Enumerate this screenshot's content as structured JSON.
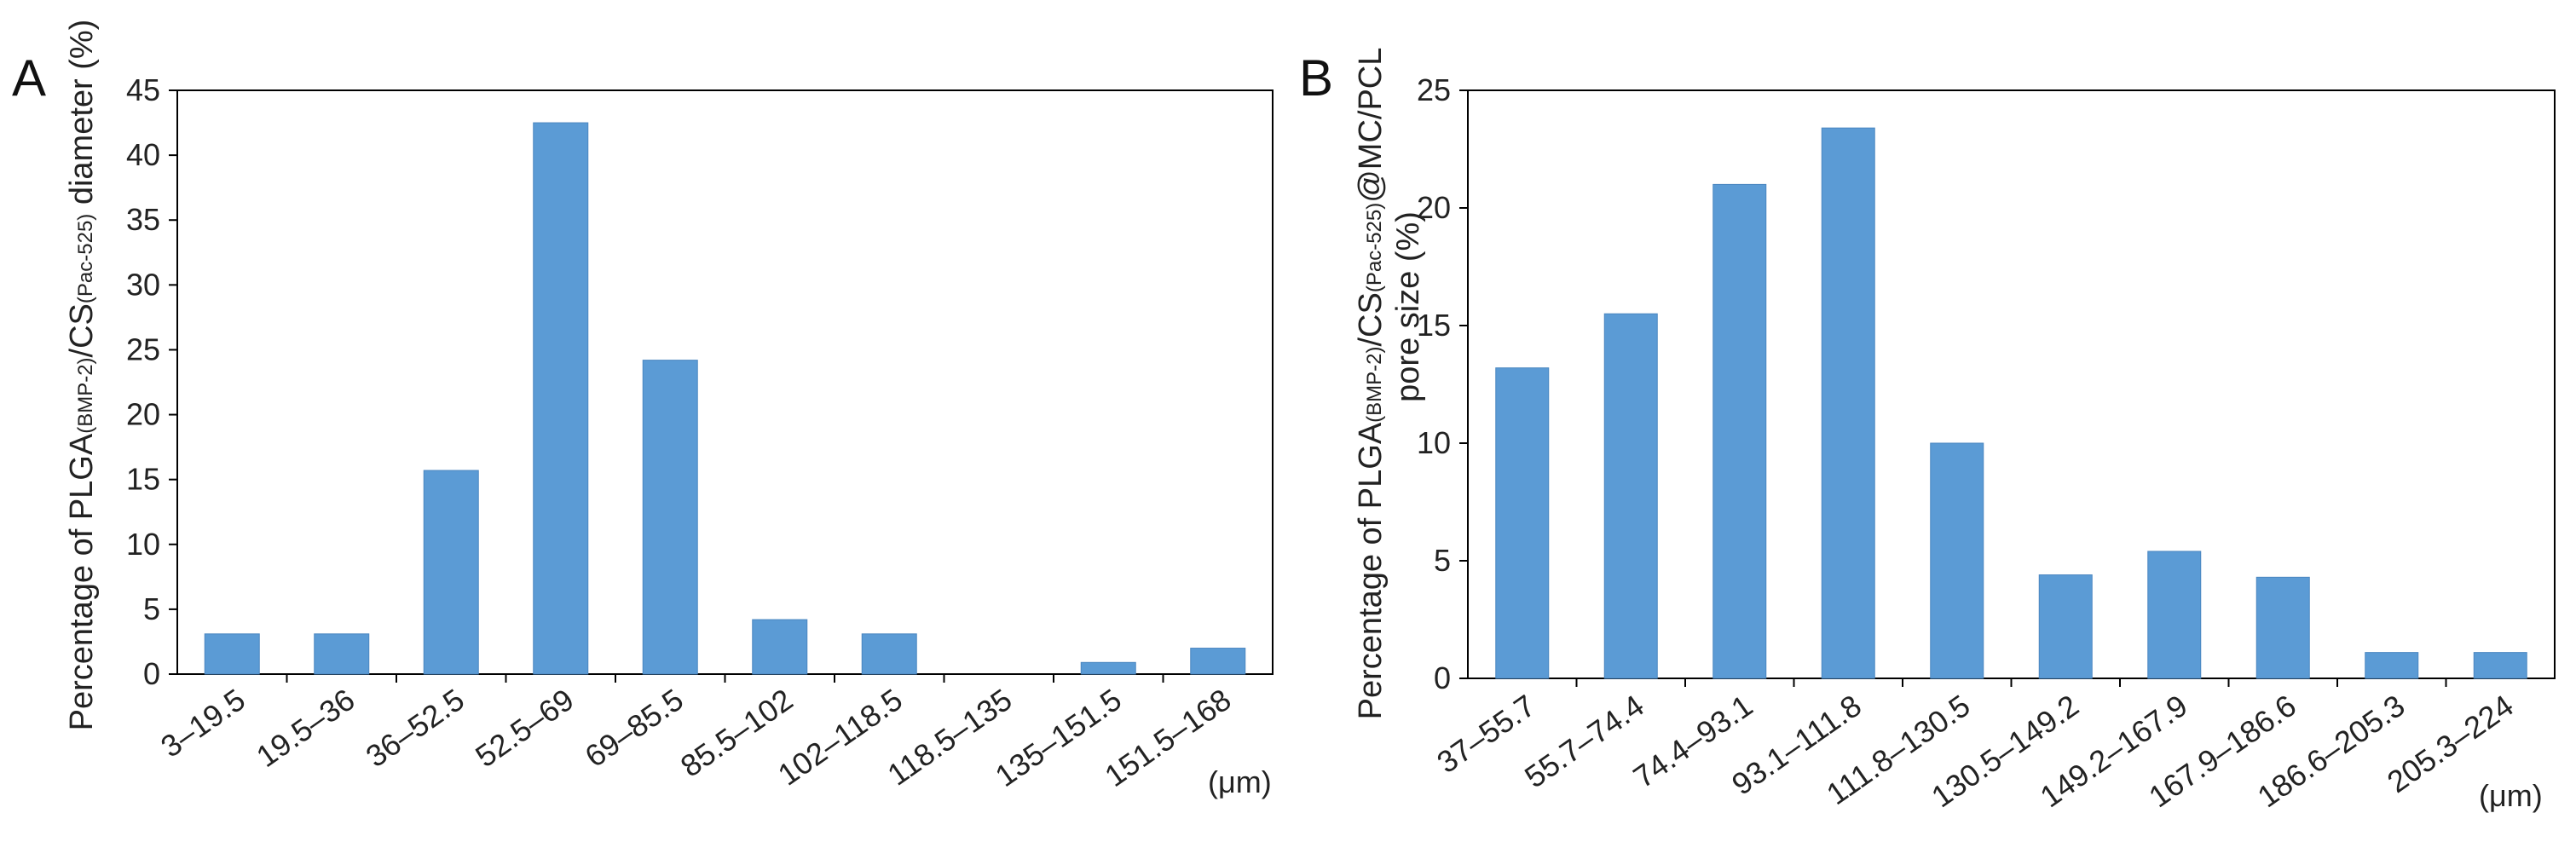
{
  "chart_data": [
    {
      "type": "bar",
      "panel_label": "A",
      "ylabel_parts": [
        "Percentage of PLGA",
        "(BMP-2)",
        "/CS",
        "(Pac-525)",
        " diameter (%)"
      ],
      "unit_label": "(μm)",
      "ylim": [
        0,
        45
      ],
      "yticks": [
        0,
        5,
        10,
        15,
        20,
        25,
        30,
        35,
        40,
        45
      ],
      "categories": [
        "3–19.5",
        "19.5–36",
        "36–52.5",
        "52.5–69",
        "69–85.5",
        "85.5–102",
        "102–118.5",
        "118.5–135",
        "135–151.5",
        "151.5–168"
      ],
      "values": [
        3.1,
        3.1,
        15.7,
        42.5,
        24.2,
        4.2,
        3.1,
        0,
        0.9,
        2.0
      ],
      "bar_color": "#5b9bd5"
    },
    {
      "type": "bar",
      "panel_label": "B",
      "ylabel_parts": [
        "Percentage of PLGA",
        "(BMP-2)",
        "/CS",
        "(Pac-525)",
        "@MC/PCL"
      ],
      "ylabel_line2": "pore size (%)",
      "unit_label": "(μm)",
      "ylim": [
        0,
        25
      ],
      "yticks": [
        0,
        5,
        10,
        15,
        20,
        25
      ],
      "categories": [
        "37–55.7",
        "55.7–74.4",
        "74.4–93.1",
        "93.1–111.8",
        "111.8–130.5",
        "130.5–149.2",
        "149.2–167.9",
        "167.9–186.6",
        "186.6–205.3",
        "205.3–224"
      ],
      "values": [
        13.2,
        15.5,
        21.0,
        23.4,
        10.0,
        4.4,
        5.4,
        4.3,
        1.1,
        1.1
      ],
      "bar_color": "#5b9bd5"
    }
  ]
}
